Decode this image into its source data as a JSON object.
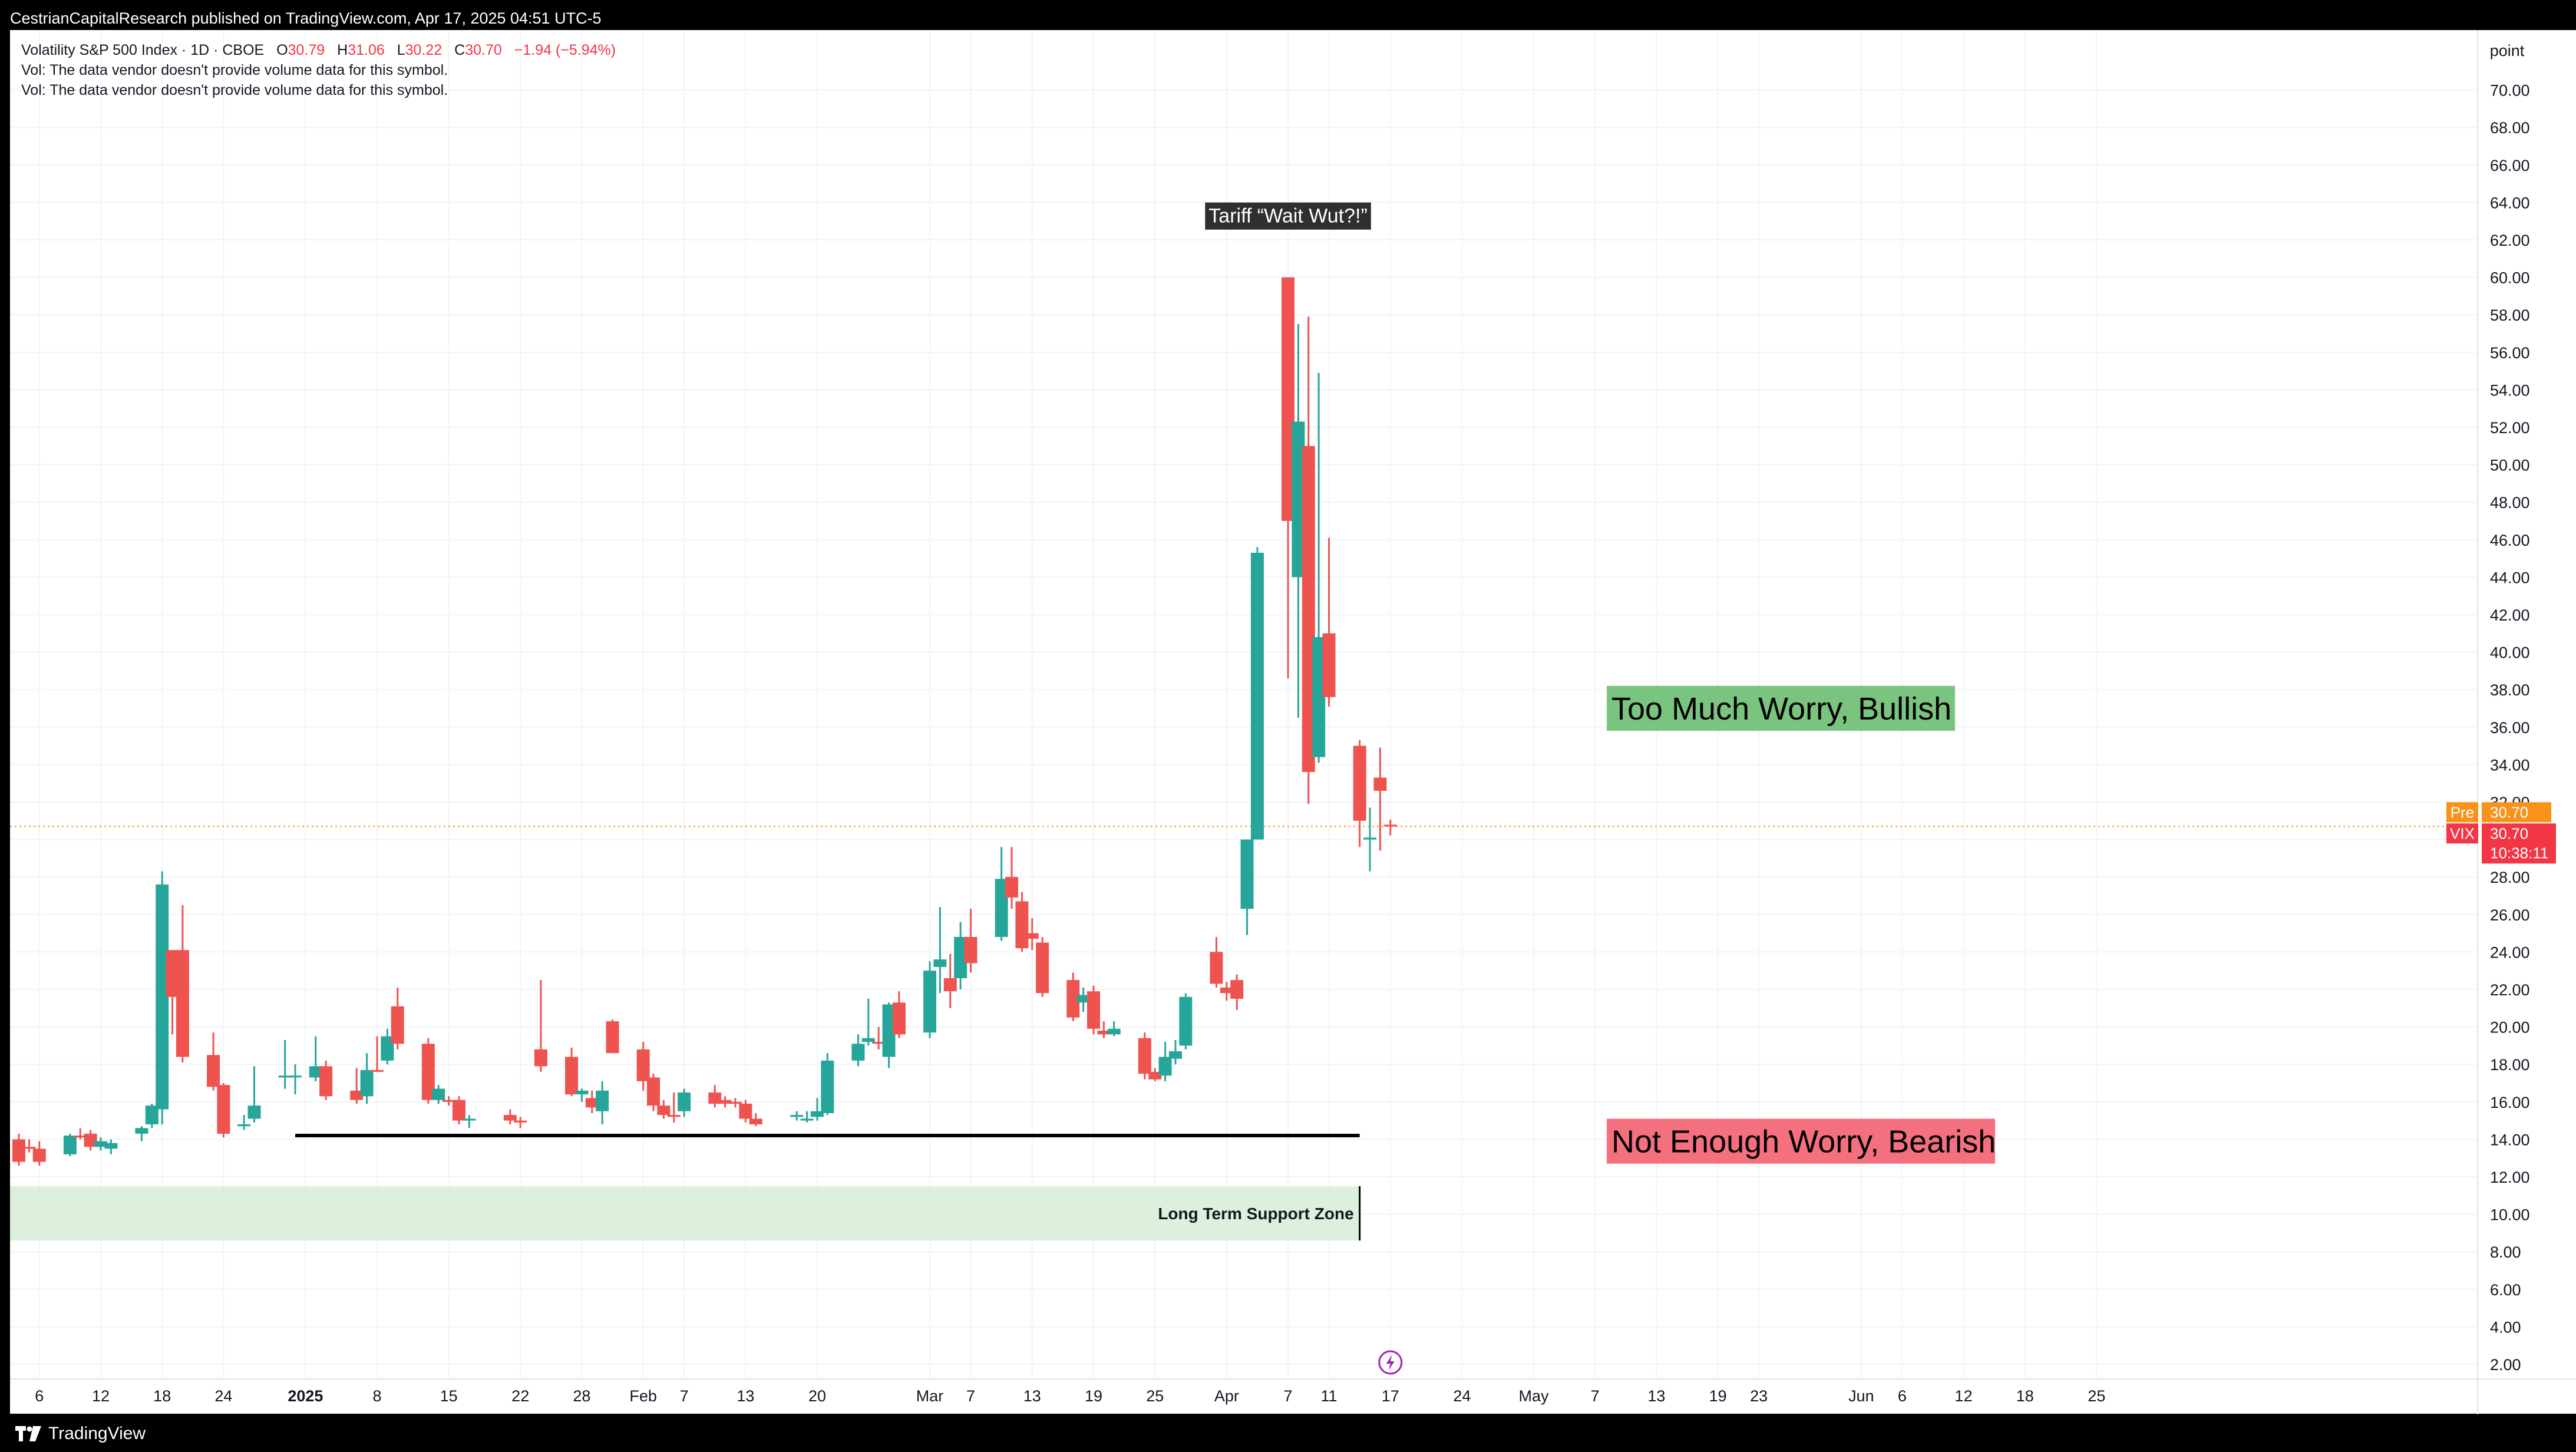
{
  "header": {
    "publisher": "CestrianCapitalResearch published on TradingView.com, Apr 17, 2025 04:51 UTC-5"
  },
  "legend": {
    "symbol": "Volatility S&P 500 Index · 1D · CBOE",
    "open_label": "O",
    "open": "30.79",
    "high_label": "H",
    "high": "31.06",
    "low_label": "L",
    "low": "30.22",
    "close_label": "C",
    "close": "30.70",
    "change": "−1.94 (−5.94%)",
    "vol_note_1": "Vol: The data vendor doesn't provide volume data for this symbol.",
    "vol_note_2": "Vol: The data vendor doesn't provide volume data for this symbol."
  },
  "footer": {
    "brand": "TradingView"
  },
  "colors": {
    "up": "#26a69a",
    "down": "#ef5350",
    "grid": "#f0f3fa",
    "line": "#000000",
    "support_zone": "#d4ecd4",
    "bull_box": "#7bc47f",
    "bear_box": "#f4707f",
    "pre_label": "#f7931a",
    "vix_label": "#f23645",
    "price_line": "#f7931a"
  },
  "chart_data": {
    "type": "candlestick",
    "scale_unit": "point",
    "ylim": [
      1,
      71.5
    ],
    "y_ticks": [
      "2.00",
      "4.00",
      "6.00",
      "8.00",
      "10.00",
      "12.00",
      "14.00",
      "16.00",
      "18.00",
      "20.00",
      "22.00",
      "24.00",
      "26.00",
      "28.00",
      "30.00",
      "32.00",
      "34.00",
      "36.00",
      "38.00",
      "40.00",
      "42.00",
      "44.00",
      "46.00",
      "48.00",
      "50.00",
      "52.00",
      "54.00",
      "56.00",
      "58.00",
      "60.00",
      "62.00",
      "64.00",
      "66.00",
      "68.00",
      "70.00"
    ],
    "x_ticks": [
      {
        "label": "6",
        "date": "2024-12-06"
      },
      {
        "label": "12",
        "date": "2024-12-12"
      },
      {
        "label": "18",
        "date": "2024-12-18"
      },
      {
        "label": "24",
        "date": "2024-12-24"
      },
      {
        "label": "2025",
        "date": "2025-01-01",
        "bold": true
      },
      {
        "label": "8",
        "date": "2025-01-08"
      },
      {
        "label": "15",
        "date": "2025-01-15"
      },
      {
        "label": "22",
        "date": "2025-01-22"
      },
      {
        "label": "28",
        "date": "2025-01-28"
      },
      {
        "label": "Feb",
        "date": "2025-02-03"
      },
      {
        "label": "7",
        "date": "2025-02-07"
      },
      {
        "label": "13",
        "date": "2025-02-13"
      },
      {
        "label": "20",
        "date": "2025-02-20"
      },
      {
        "label": "Mar",
        "date": "2025-03-03"
      },
      {
        "label": "7",
        "date": "2025-03-07"
      },
      {
        "label": "13",
        "date": "2025-03-13"
      },
      {
        "label": "19",
        "date": "2025-03-19"
      },
      {
        "label": "25",
        "date": "2025-03-25"
      },
      {
        "label": "Apr",
        "date": "2025-04-01"
      },
      {
        "label": "7",
        "date": "2025-04-07"
      },
      {
        "label": "11",
        "date": "2025-04-11"
      },
      {
        "label": "17",
        "date": "2025-04-17"
      },
      {
        "label": "24",
        "date": "2025-04-24"
      },
      {
        "label": "May",
        "date": "2025-05-01"
      },
      {
        "label": "7",
        "date": "2025-05-07"
      },
      {
        "label": "13",
        "date": "2025-05-13"
      },
      {
        "label": "19",
        "date": "2025-05-19"
      },
      {
        "label": "23",
        "date": "2025-05-23"
      },
      {
        "label": "Jun",
        "date": "2025-06-02"
      },
      {
        "label": "6",
        "date": "2025-06-06"
      },
      {
        "label": "12",
        "date": "2025-06-12"
      },
      {
        "label": "18",
        "date": "2025-06-18"
      },
      {
        "label": "25",
        "date": "2025-06-25"
      }
    ],
    "candles": [
      {
        "date": "2024-12-04",
        "o": 14.0,
        "h": 14.3,
        "l": 12.6,
        "c": 12.8
      },
      {
        "date": "2024-12-05",
        "o": 13.6,
        "h": 14.0,
        "l": 13.3,
        "c": 13.5
      },
      {
        "date": "2024-12-06",
        "o": 13.5,
        "h": 13.9,
        "l": 12.6,
        "c": 12.8
      },
      {
        "date": "2024-12-09",
        "o": 13.2,
        "h": 14.3,
        "l": 13.1,
        "c": 14.2
      },
      {
        "date": "2024-12-10",
        "o": 14.2,
        "h": 14.6,
        "l": 14.0,
        "c": 14.1
      },
      {
        "date": "2024-12-11",
        "o": 14.3,
        "h": 14.5,
        "l": 13.4,
        "c": 13.6
      },
      {
        "date": "2024-12-12",
        "o": 13.6,
        "h": 14.1,
        "l": 13.4,
        "c": 13.9
      },
      {
        "date": "2024-12-13",
        "o": 13.5,
        "h": 14.0,
        "l": 13.2,
        "c": 13.8
      },
      {
        "date": "2024-12-16",
        "o": 14.3,
        "h": 14.7,
        "l": 13.9,
        "c": 14.6
      },
      {
        "date": "2024-12-17",
        "o": 14.8,
        "h": 15.9,
        "l": 14.6,
        "c": 15.8
      },
      {
        "date": "2024-12-18",
        "o": 15.6,
        "h": 28.3,
        "l": 14.8,
        "c": 27.6
      },
      {
        "date": "2024-12-19",
        "o": 24.1,
        "h": 24.1,
        "l": 19.6,
        "c": 21.6
      },
      {
        "date": "2024-12-20",
        "o": 24.1,
        "h": 26.5,
        "l": 18.1,
        "c": 18.4
      },
      {
        "date": "2024-12-23",
        "o": 18.5,
        "h": 19.7,
        "l": 16.6,
        "c": 16.8
      },
      {
        "date": "2024-12-24",
        "o": 16.9,
        "h": 17.0,
        "l": 14.1,
        "c": 14.3
      },
      {
        "date": "2024-12-26",
        "o": 14.7,
        "h": 15.3,
        "l": 14.5,
        "c": 14.8
      },
      {
        "date": "2024-12-27",
        "o": 15.1,
        "h": 17.9,
        "l": 14.9,
        "c": 15.8
      },
      {
        "date": "2024-12-30",
        "o": 17.3,
        "h": 19.3,
        "l": 16.7,
        "c": 17.4
      },
      {
        "date": "2024-12-31",
        "o": 17.4,
        "h": 18.0,
        "l": 16.4,
        "c": 17.4
      },
      {
        "date": "2025-01-02",
        "o": 17.3,
        "h": 19.5,
        "l": 17.1,
        "c": 17.9
      },
      {
        "date": "2025-01-03",
        "o": 17.9,
        "h": 18.2,
        "l": 16.1,
        "c": 16.3
      },
      {
        "date": "2025-01-06",
        "o": 16.6,
        "h": 17.8,
        "l": 15.9,
        "c": 16.1
      },
      {
        "date": "2025-01-07",
        "o": 16.3,
        "h": 18.6,
        "l": 15.9,
        "c": 17.7
      },
      {
        "date": "2025-01-08",
        "o": 17.7,
        "h": 19.5,
        "l": 17.6,
        "c": 17.6
      },
      {
        "date": "2025-01-09",
        "o": 18.2,
        "h": 19.9,
        "l": 18.0,
        "c": 19.5
      },
      {
        "date": "2025-01-10",
        "o": 21.1,
        "h": 22.1,
        "l": 18.8,
        "c": 19.1
      },
      {
        "date": "2025-01-13",
        "o": 19.1,
        "h": 19.4,
        "l": 15.9,
        "c": 16.1
      },
      {
        "date": "2025-01-14",
        "o": 16.1,
        "h": 16.9,
        "l": 15.9,
        "c": 16.7
      },
      {
        "date": "2025-01-15",
        "o": 16.1,
        "h": 16.3,
        "l": 15.8,
        "c": 16.0
      },
      {
        "date": "2025-01-16",
        "o": 16.1,
        "h": 16.3,
        "l": 14.8,
        "c": 15.0
      },
      {
        "date": "2025-01-17",
        "o": 15.0,
        "h": 15.3,
        "l": 14.6,
        "c": 15.1
      },
      {
        "date": "2025-01-21",
        "o": 15.3,
        "h": 15.6,
        "l": 14.8,
        "c": 15.0
      },
      {
        "date": "2025-01-22",
        "o": 15.0,
        "h": 15.2,
        "l": 14.6,
        "c": 14.9
      },
      {
        "date": "2025-01-24",
        "o": 18.8,
        "h": 22.5,
        "l": 17.6,
        "c": 17.9
      },
      {
        "date": "2025-01-27",
        "o": 18.4,
        "h": 18.9,
        "l": 16.3,
        "c": 16.4
      },
      {
        "date": "2025-01-28",
        "o": 16.4,
        "h": 16.7,
        "l": 16.0,
        "c": 16.6
      },
      {
        "date": "2025-01-29",
        "o": 16.2,
        "h": 16.6,
        "l": 15.4,
        "c": 15.7
      },
      {
        "date": "2025-01-30",
        "o": 15.5,
        "h": 17.1,
        "l": 14.8,
        "c": 16.6
      },
      {
        "date": "2025-01-31",
        "o": 20.3,
        "h": 20.4,
        "l": 18.6,
        "c": 18.6
      },
      {
        "date": "2025-02-03",
        "o": 18.8,
        "h": 19.2,
        "l": 16.6,
        "c": 17.1
      },
      {
        "date": "2025-02-04",
        "o": 17.3,
        "h": 17.5,
        "l": 15.5,
        "c": 15.8
      },
      {
        "date": "2025-02-05",
        "o": 15.8,
        "h": 16.1,
        "l": 15.1,
        "c": 15.3
      },
      {
        "date": "2025-02-06",
        "o": 15.3,
        "h": 16.5,
        "l": 14.9,
        "c": 15.2
      },
      {
        "date": "2025-02-07",
        "o": 15.5,
        "h": 16.7,
        "l": 15.2,
        "c": 16.5
      },
      {
        "date": "2025-02-10",
        "o": 16.5,
        "h": 16.9,
        "l": 15.7,
        "c": 15.9
      },
      {
        "date": "2025-02-11",
        "o": 16.1,
        "h": 16.3,
        "l": 15.7,
        "c": 15.9
      },
      {
        "date": "2025-02-12",
        "o": 16.0,
        "h": 16.2,
        "l": 15.7,
        "c": 15.9
      },
      {
        "date": "2025-02-13",
        "o": 15.9,
        "h": 16.1,
        "l": 14.9,
        "c": 15.1
      },
      {
        "date": "2025-02-14",
        "o": 15.1,
        "h": 15.4,
        "l": 14.7,
        "c": 14.8
      },
      {
        "date": "2025-02-18",
        "o": 15.2,
        "h": 15.5,
        "l": 15.0,
        "c": 15.3
      },
      {
        "date": "2025-02-19",
        "o": 15.0,
        "h": 15.5,
        "l": 14.9,
        "c": 15.1
      },
      {
        "date": "2025-02-20",
        "o": 15.2,
        "h": 16.2,
        "l": 15.0,
        "c": 15.5
      },
      {
        "date": "2025-02-21",
        "o": 15.4,
        "h": 18.6,
        "l": 15.3,
        "c": 18.2
      },
      {
        "date": "2025-02-24",
        "o": 18.2,
        "h": 19.6,
        "l": 17.9,
        "c": 19.1
      },
      {
        "date": "2025-02-25",
        "o": 19.2,
        "h": 21.5,
        "l": 19.0,
        "c": 19.4
      },
      {
        "date": "2025-02-26",
        "o": 19.2,
        "h": 20.0,
        "l": 18.8,
        "c": 19.1
      },
      {
        "date": "2025-02-27",
        "o": 18.4,
        "h": 21.3,
        "l": 17.8,
        "c": 21.2
      },
      {
        "date": "2025-02-28",
        "o": 21.3,
        "h": 21.9,
        "l": 19.4,
        "c": 19.6
      },
      {
        "date": "2025-03-03",
        "o": 19.7,
        "h": 23.5,
        "l": 19.4,
        "c": 23.0
      },
      {
        "date": "2025-03-04",
        "o": 23.2,
        "h": 26.4,
        "l": 21.8,
        "c": 23.6
      },
      {
        "date": "2025-03-05",
        "o": 22.6,
        "h": 23.9,
        "l": 21.0,
        "c": 21.9
      },
      {
        "date": "2025-03-06",
        "o": 22.6,
        "h": 25.6,
        "l": 22.0,
        "c": 24.8
      },
      {
        "date": "2025-03-07",
        "o": 24.8,
        "h": 26.3,
        "l": 22.9,
        "c": 23.4
      },
      {
        "date": "2025-03-10",
        "o": 24.8,
        "h": 29.6,
        "l": 24.6,
        "c": 27.9
      },
      {
        "date": "2025-03-11",
        "o": 28.0,
        "h": 29.6,
        "l": 26.3,
        "c": 26.9
      },
      {
        "date": "2025-03-12",
        "o": 26.7,
        "h": 27.2,
        "l": 24.0,
        "c": 24.2
      },
      {
        "date": "2025-03-13",
        "o": 25.0,
        "h": 25.8,
        "l": 24.1,
        "c": 24.7
      },
      {
        "date": "2025-03-14",
        "o": 24.5,
        "h": 24.8,
        "l": 21.6,
        "c": 21.8
      },
      {
        "date": "2025-03-17",
        "o": 22.5,
        "h": 22.9,
        "l": 20.3,
        "c": 20.5
      },
      {
        "date": "2025-03-18",
        "o": 21.3,
        "h": 22.1,
        "l": 20.8,
        "c": 21.7
      },
      {
        "date": "2025-03-19",
        "o": 21.9,
        "h": 22.2,
        "l": 19.6,
        "c": 19.9
      },
      {
        "date": "2025-03-20",
        "o": 19.8,
        "h": 20.3,
        "l": 19.4,
        "c": 19.6
      },
      {
        "date": "2025-03-21",
        "o": 19.6,
        "h": 20.3,
        "l": 19.5,
        "c": 19.9
      },
      {
        "date": "2025-03-24",
        "o": 19.4,
        "h": 19.7,
        "l": 17.2,
        "c": 17.5
      },
      {
        "date": "2025-03-25",
        "o": 17.6,
        "h": 17.8,
        "l": 17.1,
        "c": 17.2
      },
      {
        "date": "2025-03-26",
        "o": 17.4,
        "h": 19.2,
        "l": 17.1,
        "c": 18.4
      },
      {
        "date": "2025-03-27",
        "o": 18.3,
        "h": 19.3,
        "l": 18.0,
        "c": 18.7
      },
      {
        "date": "2025-03-28",
        "o": 19.0,
        "h": 21.8,
        "l": 18.8,
        "c": 21.6
      },
      {
        "date": "2025-03-31",
        "o": 24.0,
        "h": 24.8,
        "l": 22.1,
        "c": 22.3
      },
      {
        "date": "2025-04-01",
        "o": 22.1,
        "h": 22.4,
        "l": 21.4,
        "c": 21.8
      },
      {
        "date": "2025-04-02",
        "o": 22.5,
        "h": 22.8,
        "l": 20.9,
        "c": 21.5
      },
      {
        "date": "2025-04-03",
        "o": 26.3,
        "h": 30.0,
        "l": 24.9,
        "c": 30.0
      },
      {
        "date": "2025-04-04",
        "o": 30.0,
        "h": 45.6,
        "l": 30.0,
        "c": 45.3
      },
      {
        "date": "2025-04-07",
        "o": 60.0,
        "h": 60.0,
        "l": 38.6,
        "c": 47.0
      },
      {
        "date": "2025-04-08",
        "o": 44.0,
        "h": 57.5,
        "l": 36.5,
        "c": 52.3
      },
      {
        "date": "2025-04-09",
        "o": 51.0,
        "h": 57.9,
        "l": 31.9,
        "c": 33.6
      },
      {
        "date": "2025-04-10",
        "o": 34.4,
        "h": 54.9,
        "l": 34.1,
        "c": 40.8
      },
      {
        "date": "2025-04-11",
        "o": 41.0,
        "h": 46.1,
        "l": 37.1,
        "c": 37.6
      },
      {
        "date": "2025-04-14",
        "o": 35.0,
        "h": 35.3,
        "l": 29.6,
        "c": 31.0
      },
      {
        "date": "2025-04-15",
        "o": 30.0,
        "h": 31.7,
        "l": 28.3,
        "c": 30.1
      },
      {
        "date": "2025-04-16",
        "o": 33.3,
        "h": 34.9,
        "l": 29.4,
        "c": 32.6
      },
      {
        "date": "2025-04-17",
        "o": 30.79,
        "h": 31.06,
        "l": 30.22,
        "c": 30.7
      }
    ],
    "annotations": {
      "tariff": "Tariff “Wait Wut?!”",
      "bullish": "Too Much Worry, Bullish",
      "bearish": "Not Enough Worry, Bearish",
      "support": "Long Term Support Zone"
    },
    "horizontal_line": {
      "y": 14.2,
      "from": "2024-12-31",
      "to": "2025-04-14"
    },
    "support_zone": {
      "y0": 8.6,
      "y1": 11.5,
      "to": "2025-04-14"
    },
    "bullish_box_levels": {
      "y0": 35.8,
      "y1": 38.2
    },
    "bearish_box_levels": {
      "y0": 12.7,
      "y1": 15.1
    },
    "tariff_label_y": 63.3,
    "price_labels": {
      "pre_tag": "Pre",
      "pre_value": "30.70",
      "vix_tag": "VIX",
      "vix_value": "30.70",
      "countdown": "10:38:11",
      "price": 30.7
    }
  }
}
